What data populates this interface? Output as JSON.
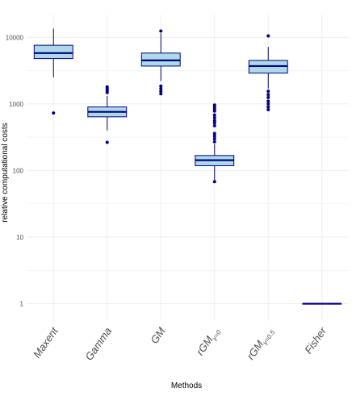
{
  "chart_data": {
    "type": "boxplot",
    "xlabel": "Methods",
    "ylabel": "relative computational costs",
    "yscale": "log10",
    "ylim": [
      0.55,
      22000
    ],
    "yticks": [
      {
        "value": 1,
        "label": "1"
      },
      {
        "value": 10,
        "label": "10"
      },
      {
        "value": 100,
        "label": "100"
      },
      {
        "value": 1000,
        "label": "1000"
      },
      {
        "value": 10000,
        "label": "10000"
      }
    ],
    "grid": true,
    "colors": {
      "box_fill": "#add8e6",
      "box_line": "#000080",
      "outlier": "#000080",
      "grid": "#ebebeb"
    },
    "categories": [
      {
        "id": "maxent",
        "label": "Maxent",
        "sub": ""
      },
      {
        "id": "gamma",
        "label": "Gamma",
        "sub": ""
      },
      {
        "id": "gm",
        "label": "GM",
        "sub": ""
      },
      {
        "id": "rgm0",
        "label": "rGM",
        "sub": "γ=0"
      },
      {
        "id": "rgm05",
        "label": "rGM",
        "sub": "γ=0.5"
      },
      {
        "id": "fisher",
        "label": "Fisher",
        "sub": ""
      }
    ],
    "boxes": [
      {
        "whisker_low": 2500,
        "q1": 4800,
        "median": 5800,
        "q3": 7600,
        "whisker_high": 13500,
        "outliers": [
          730
        ]
      },
      {
        "whisker_low": 400,
        "q1": 640,
        "median": 760,
        "q3": 900,
        "whisker_high": 1320,
        "outliers": [
          1480,
          1560,
          1640,
          1720,
          1800,
          265
        ]
      },
      {
        "whisker_low": 2200,
        "q1": 3700,
        "median": 4500,
        "q3": 5800,
        "whisker_high": 11500,
        "outliers": [
          12400,
          1420,
          1550,
          1700,
          1850
        ]
      },
      {
        "whisker_low": 70,
        "q1": 118,
        "median": 143,
        "q3": 168,
        "whisker_high": 250,
        "outliers": [
          68,
          270,
          300,
          330,
          360,
          470,
          520,
          560,
          620,
          680,
          780,
          840,
          900,
          960
        ]
      },
      {
        "whisker_low": 1700,
        "q1": 2900,
        "median": 3700,
        "q3": 4500,
        "whisker_high": 7200,
        "outliers": [
          10500,
          1550,
          1380,
          1250,
          1100,
          1000,
          900,
          820
        ]
      },
      {
        "whisker_low": 1,
        "q1": 1,
        "median": 1,
        "q3": 1,
        "whisker_high": 1,
        "outliers": []
      }
    ]
  }
}
